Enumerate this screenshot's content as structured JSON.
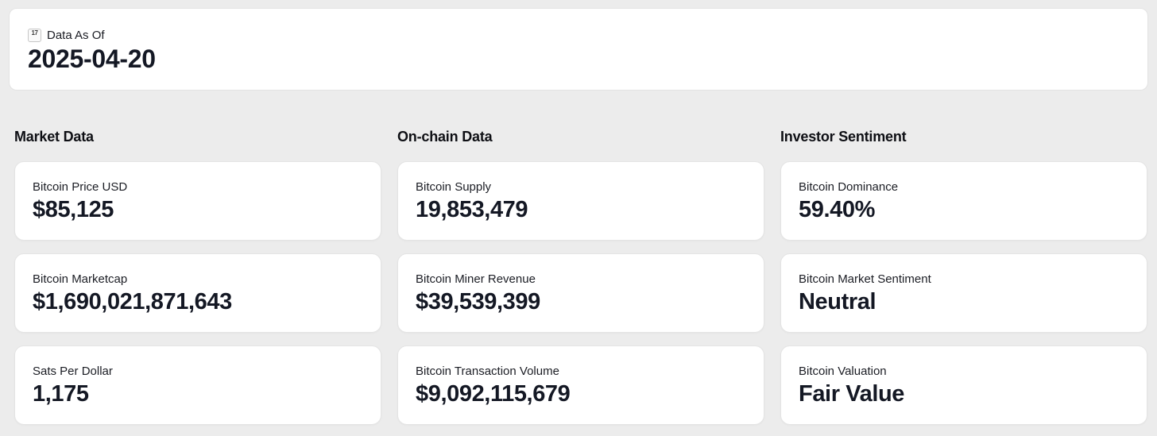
{
  "colors": {
    "page_background": "#ececec",
    "card_background": "#ffffff",
    "card_border": "#e4e4e4",
    "label_text": "#1b1d24",
    "value_text": "#141824",
    "calendar_icon_red": "#c8453c"
  },
  "header": {
    "icon": "calendar-icon",
    "icon_day": "17",
    "label": "Data As Of",
    "date": "2025-04-20"
  },
  "sections": [
    {
      "title": "Market Data",
      "cards": [
        {
          "label": "Bitcoin Price USD",
          "value": "$85,125"
        },
        {
          "label": "Bitcoin Marketcap",
          "value": "$1,690,021,871,643"
        },
        {
          "label": "Sats Per Dollar",
          "value": "1,175"
        }
      ]
    },
    {
      "title": "On-chain Data",
      "cards": [
        {
          "label": "Bitcoin Supply",
          "value": "19,853,479"
        },
        {
          "label": "Bitcoin Miner Revenue",
          "value": "$39,539,399"
        },
        {
          "label": "Bitcoin Transaction Volume",
          "value": "$9,092,115,679"
        }
      ]
    },
    {
      "title": "Investor Sentiment",
      "cards": [
        {
          "label": "Bitcoin Dominance",
          "value": "59.40%"
        },
        {
          "label": "Bitcoin Market Sentiment",
          "value": "Neutral"
        },
        {
          "label": "Bitcoin Valuation",
          "value": "Fair Value"
        }
      ]
    }
  ]
}
